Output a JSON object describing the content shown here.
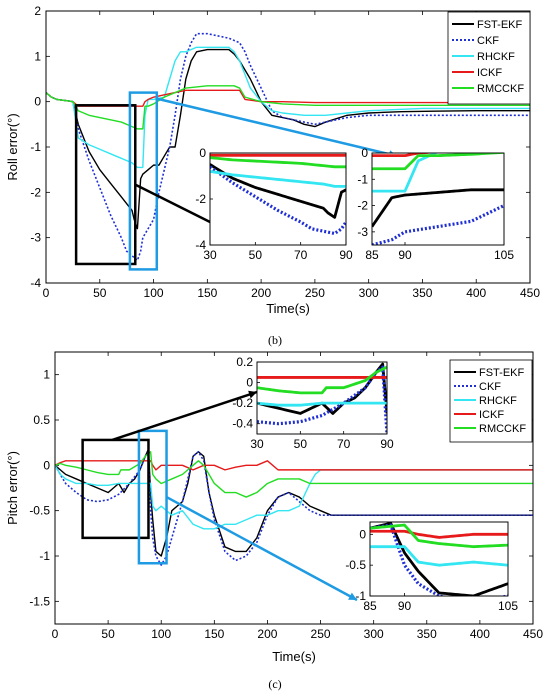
{
  "series_style": {
    "FST-EKF": {
      "color": "#000000",
      "dash": "",
      "width": 1.4
    },
    "CKF": {
      "color": "#1f2fd6",
      "dash": "2,2",
      "width": 1.6
    },
    "RHCKF": {
      "color": "#33e6f2",
      "dash": "",
      "width": 1.4
    },
    "ICKF": {
      "color": "#e61a1a",
      "dash": "",
      "width": 1.4
    },
    "RMCCKF": {
      "color": "#22dd22",
      "dash": "",
      "width": 1.4
    }
  },
  "highlight_colors": {
    "black_box": "#000000",
    "blue_box": "#1e9be3"
  },
  "captions": {
    "b": "(b)",
    "c": "(c)"
  },
  "chart_data": [
    {
      "id": "roll",
      "type": "line",
      "xlabel": "Time(s)",
      "ylabel": "Roll error(°)",
      "xlim": [
        0,
        450
      ],
      "ylim": [
        -4,
        2
      ],
      "xticks": [
        0,
        50,
        100,
        150,
        200,
        250,
        300,
        350,
        400,
        450
      ],
      "yticks": [
        -4,
        -3,
        -2,
        -1,
        0,
        1,
        2
      ],
      "legend": "top-right",
      "series": [
        {
          "name": "FST-EKF",
          "x": [
            0,
            5,
            10,
            20,
            25,
            30,
            40,
            50,
            60,
            70,
            80,
            82,
            85,
            88,
            90,
            95,
            100,
            105,
            110,
            115,
            120,
            125,
            130,
            135,
            140,
            150,
            160,
            170,
            175,
            180,
            190,
            200,
            210,
            220,
            230,
            240,
            250,
            260,
            280,
            300,
            330,
            360,
            400,
            450
          ],
          "y": [
            0.2,
            0.1,
            0.05,
            0.02,
            0,
            -0.5,
            -1.1,
            -1.5,
            -1.8,
            -2.1,
            -2.4,
            -2.6,
            -2.8,
            -1.7,
            -1.6,
            -1.5,
            -1.4,
            -1.4,
            -1.2,
            -1.0,
            -1.0,
            -0.3,
            0.5,
            0.9,
            1.1,
            1.15,
            1.15,
            1.15,
            1.05,
            0.9,
            0.5,
            0,
            -0.3,
            -0.35,
            -0.4,
            -0.5,
            -0.55,
            -0.45,
            -0.3,
            -0.25,
            -0.22,
            -0.21,
            -0.2,
            -0.2
          ]
        },
        {
          "name": "CKF",
          "x": [
            0,
            5,
            10,
            20,
            25,
            30,
            40,
            50,
            60,
            70,
            75,
            80,
            85,
            88,
            90,
            95,
            100,
            105,
            110,
            115,
            120,
            125,
            130,
            135,
            140,
            150,
            160,
            170,
            180,
            185,
            190,
            200,
            210,
            220,
            240,
            250,
            260,
            280,
            300,
            330,
            400,
            450
          ],
          "y": [
            0.2,
            0.1,
            0.05,
            0.02,
            0,
            -0.6,
            -1.3,
            -1.9,
            -2.5,
            -3.0,
            -3.3,
            -3.4,
            -3.5,
            -3.3,
            -3.0,
            -2.8,
            -2.6,
            -2.0,
            -1.5,
            -1.0,
            -0.3,
            0.5,
            1.0,
            1.3,
            1.5,
            1.5,
            1.45,
            1.4,
            1.3,
            1.1,
            0.8,
            0.3,
            -0.2,
            -0.35,
            -0.45,
            -0.5,
            -0.45,
            -0.35,
            -0.3,
            -0.3,
            -0.3,
            -0.3
          ]
        },
        {
          "name": "RHCKF",
          "x": [
            0,
            5,
            10,
            20,
            25,
            30,
            40,
            50,
            60,
            70,
            80,
            85,
            90,
            92,
            95,
            100,
            110,
            115,
            120,
            125,
            130,
            140,
            150,
            160,
            170,
            175,
            180,
            185,
            190,
            200,
            210,
            220,
            240,
            260,
            280,
            300,
            350,
            450
          ],
          "y": [
            0.2,
            0.1,
            0.05,
            0.02,
            0,
            -0.8,
            -0.95,
            -1.05,
            -1.15,
            -1.25,
            -1.35,
            -1.45,
            -1.45,
            -0.3,
            0.05,
            0.05,
            0.1,
            0.5,
            0.9,
            1.1,
            1.1,
            1.2,
            1.2,
            1.2,
            1.2,
            1.1,
            0.9,
            0.6,
            0.3,
            0,
            -0.2,
            -0.25,
            -0.3,
            -0.3,
            -0.25,
            -0.2,
            -0.15,
            -0.15
          ]
        },
        {
          "name": "ICKF",
          "x": [
            0,
            5,
            10,
            20,
            25,
            30,
            50,
            70,
            80,
            85,
            90,
            92,
            95,
            100,
            110,
            120,
            130,
            150,
            160,
            180,
            185,
            200,
            220,
            250,
            300,
            350,
            400,
            450
          ],
          "y": [
            0.2,
            0.1,
            0.05,
            0.02,
            0,
            -0.1,
            -0.1,
            -0.1,
            -0.1,
            -0.1,
            -0.1,
            0.0,
            0.05,
            0.1,
            0.15,
            0.2,
            0.25,
            0.25,
            0.25,
            0.25,
            0.05,
            0.0,
            0.0,
            -0.02,
            -0.02,
            -0.02,
            -0.02,
            -0.02
          ]
        },
        {
          "name": "RMCCKF",
          "x": [
            0,
            5,
            10,
            20,
            25,
            30,
            40,
            50,
            60,
            70,
            80,
            85,
            90,
            92,
            95,
            100,
            110,
            120,
            130,
            150,
            175,
            180,
            185,
            200,
            220,
            250,
            300,
            350,
            400,
            450
          ],
          "y": [
            0.2,
            0.1,
            0.05,
            0.02,
            0,
            -0.2,
            -0.3,
            -0.35,
            -0.4,
            -0.45,
            -0.55,
            -0.6,
            -0.6,
            -0.1,
            -0.1,
            -0.05,
            0.1,
            0.2,
            0.3,
            0.35,
            0.35,
            0.3,
            0.1,
            0.0,
            -0.05,
            -0.08,
            -0.08,
            -0.08,
            -0.08,
            -0.08
          ]
        }
      ],
      "inset": {
        "panels": [
          {
            "xlim": [
              30,
              90
            ],
            "ylim": [
              -4,
              0
            ],
            "xticks": [
              30,
              50,
              70,
              90
            ],
            "yticks": [
              -4,
              -2,
              0
            ],
            "ytick_labels": [
              "-4",
              "-2",
              "0"
            ]
          },
          {
            "xlim": [
              85,
              105
            ],
            "ylim": [
              -3.5,
              0
            ],
            "xticks": [
              85,
              90,
              105
            ],
            "yticks": [
              -3,
              -2,
              -1,
              0
            ]
          }
        ]
      }
    },
    {
      "id": "pitch",
      "type": "line",
      "xlabel": "Time(s)",
      "ylabel": "Pitch error(°)",
      "xlim": [
        0,
        450
      ],
      "ylim": [
        -1.75,
        1.25
      ],
      "xticks": [
        0,
        50,
        100,
        150,
        200,
        250,
        300,
        350,
        400,
        450
      ],
      "yticks": [
        -1.5,
        -1,
        -0.5,
        0,
        0.5,
        1
      ],
      "legend": "top-right",
      "series": [
        {
          "name": "FST-EKF",
          "x": [
            0,
            5,
            10,
            20,
            30,
            40,
            50,
            55,
            60,
            65,
            70,
            75,
            80,
            85,
            88,
            90,
            92,
            95,
            100,
            105,
            110,
            120,
            125,
            130,
            135,
            140,
            145,
            150,
            160,
            170,
            180,
            190,
            200,
            210,
            220,
            230,
            240,
            250,
            260,
            270,
            280,
            300,
            350,
            450
          ],
          "y": [
            0.0,
            -0.05,
            -0.1,
            -0.15,
            -0.2,
            -0.25,
            -0.3,
            -0.25,
            -0.2,
            -0.3,
            -0.2,
            -0.15,
            -0.05,
            0.1,
            0.18,
            -0.3,
            -0.6,
            -0.95,
            -1.0,
            -0.8,
            -0.5,
            -0.4,
            -0.2,
            0.1,
            0.15,
            0.1,
            -0.3,
            -0.55,
            -0.9,
            -0.95,
            -0.95,
            -0.8,
            -0.5,
            -0.35,
            -0.3,
            -0.35,
            -0.45,
            -0.5,
            -0.55,
            -0.55,
            -0.55,
            -0.55,
            -0.55,
            -0.55
          ]
        },
        {
          "name": "CKF",
          "x": [
            0,
            5,
            10,
            20,
            30,
            40,
            50,
            60,
            70,
            80,
            85,
            88,
            90,
            92,
            95,
            100,
            105,
            110,
            115,
            120,
            125,
            130,
            135,
            140,
            145,
            150,
            160,
            170,
            180,
            190,
            200,
            210,
            220,
            230,
            240,
            250,
            260,
            270,
            300,
            450
          ],
          "y": [
            0.0,
            -0.1,
            -0.2,
            -0.3,
            -0.38,
            -0.4,
            -0.38,
            -0.32,
            -0.2,
            -0.05,
            0.1,
            0.15,
            -0.5,
            -0.8,
            -1.0,
            -1.1,
            -1.0,
            -0.8,
            -0.6,
            -0.4,
            -0.15,
            0.1,
            0.15,
            0.05,
            -0.3,
            -0.6,
            -0.95,
            -1.05,
            -1.0,
            -0.85,
            -0.55,
            -0.35,
            -0.3,
            -0.4,
            -0.5,
            -0.55,
            -0.55,
            -0.55,
            -0.55,
            -0.55
          ]
        },
        {
          "name": "RHCKF",
          "x": [
            0,
            5,
            10,
            20,
            30,
            40,
            50,
            60,
            70,
            80,
            85,
            90,
            92,
            95,
            100,
            105,
            110,
            120,
            130,
            140,
            150,
            160,
            170,
            180,
            190,
            200,
            210,
            220,
            230,
            240,
            245,
            250,
            260,
            270,
            300,
            350,
            450
          ],
          "y": [
            0.0,
            -0.1,
            -0.15,
            -0.2,
            -0.2,
            -0.22,
            -0.22,
            -0.2,
            -0.2,
            -0.2,
            -0.2,
            -0.2,
            -0.45,
            -0.5,
            -0.45,
            -0.5,
            -0.55,
            -0.5,
            -0.65,
            -0.7,
            -0.7,
            -0.65,
            -0.65,
            -0.6,
            -0.55,
            -0.55,
            -0.5,
            -0.5,
            -0.45,
            -0.2,
            -0.1,
            -0.05,
            -0.05,
            -0.05,
            -0.05,
            -0.05,
            -0.05
          ]
        },
        {
          "name": "ICKF",
          "x": [
            0,
            5,
            10,
            20,
            30,
            40,
            50,
            60,
            70,
            80,
            90,
            92,
            95,
            100,
            110,
            120,
            130,
            140,
            150,
            160,
            170,
            180,
            190,
            200,
            210,
            220,
            250,
            300,
            350,
            450
          ],
          "y": [
            0.0,
            0.03,
            0.05,
            0.05,
            0.05,
            0.05,
            0.05,
            0.05,
            0.05,
            0.05,
            0.05,
            0.0,
            -0.05,
            0.0,
            0.0,
            0.0,
            -0.05,
            0.0,
            0.0,
            -0.05,
            -0.02,
            0.0,
            0.0,
            0.05,
            -0.05,
            -0.05,
            -0.05,
            -0.05,
            -0.05,
            -0.05
          ]
        },
        {
          "name": "RMCCKF",
          "x": [
            0,
            5,
            10,
            20,
            30,
            40,
            50,
            60,
            62,
            70,
            80,
            85,
            90,
            92,
            95,
            100,
            110,
            120,
            125,
            130,
            135,
            140,
            145,
            150,
            160,
            170,
            180,
            190,
            200,
            210,
            220,
            230,
            240,
            250,
            260,
            280,
            300,
            350,
            450
          ],
          "y": [
            0.0,
            0.02,
            0.0,
            -0.02,
            -0.05,
            -0.08,
            -0.1,
            -0.1,
            -0.05,
            -0.05,
            0.02,
            0.1,
            0.15,
            -0.1,
            -0.15,
            -0.2,
            -0.15,
            -0.1,
            -0.05,
            0.0,
            0.05,
            0.0,
            -0.1,
            -0.2,
            -0.3,
            -0.3,
            -0.35,
            -0.3,
            -0.2,
            -0.15,
            -0.15,
            -0.15,
            -0.2,
            -0.2,
            -0.2,
            -0.2,
            -0.2,
            -0.2,
            -0.2
          ]
        }
      ],
      "inset": {
        "panels": [
          {
            "xlim": [
              30,
              90
            ],
            "ylim": [
              -0.5,
              0.2
            ],
            "xticks": [
              30,
              50,
              70,
              90
            ],
            "yticks": [
              -0.4,
              -0.2,
              0,
              0.2
            ]
          },
          {
            "xlim": [
              85,
              105
            ],
            "ylim": [
              -1,
              0.2
            ],
            "xticks": [
              85,
              90,
              105
            ],
            "yticks": [
              -1,
              -0.5,
              0
            ]
          }
        ]
      }
    }
  ]
}
